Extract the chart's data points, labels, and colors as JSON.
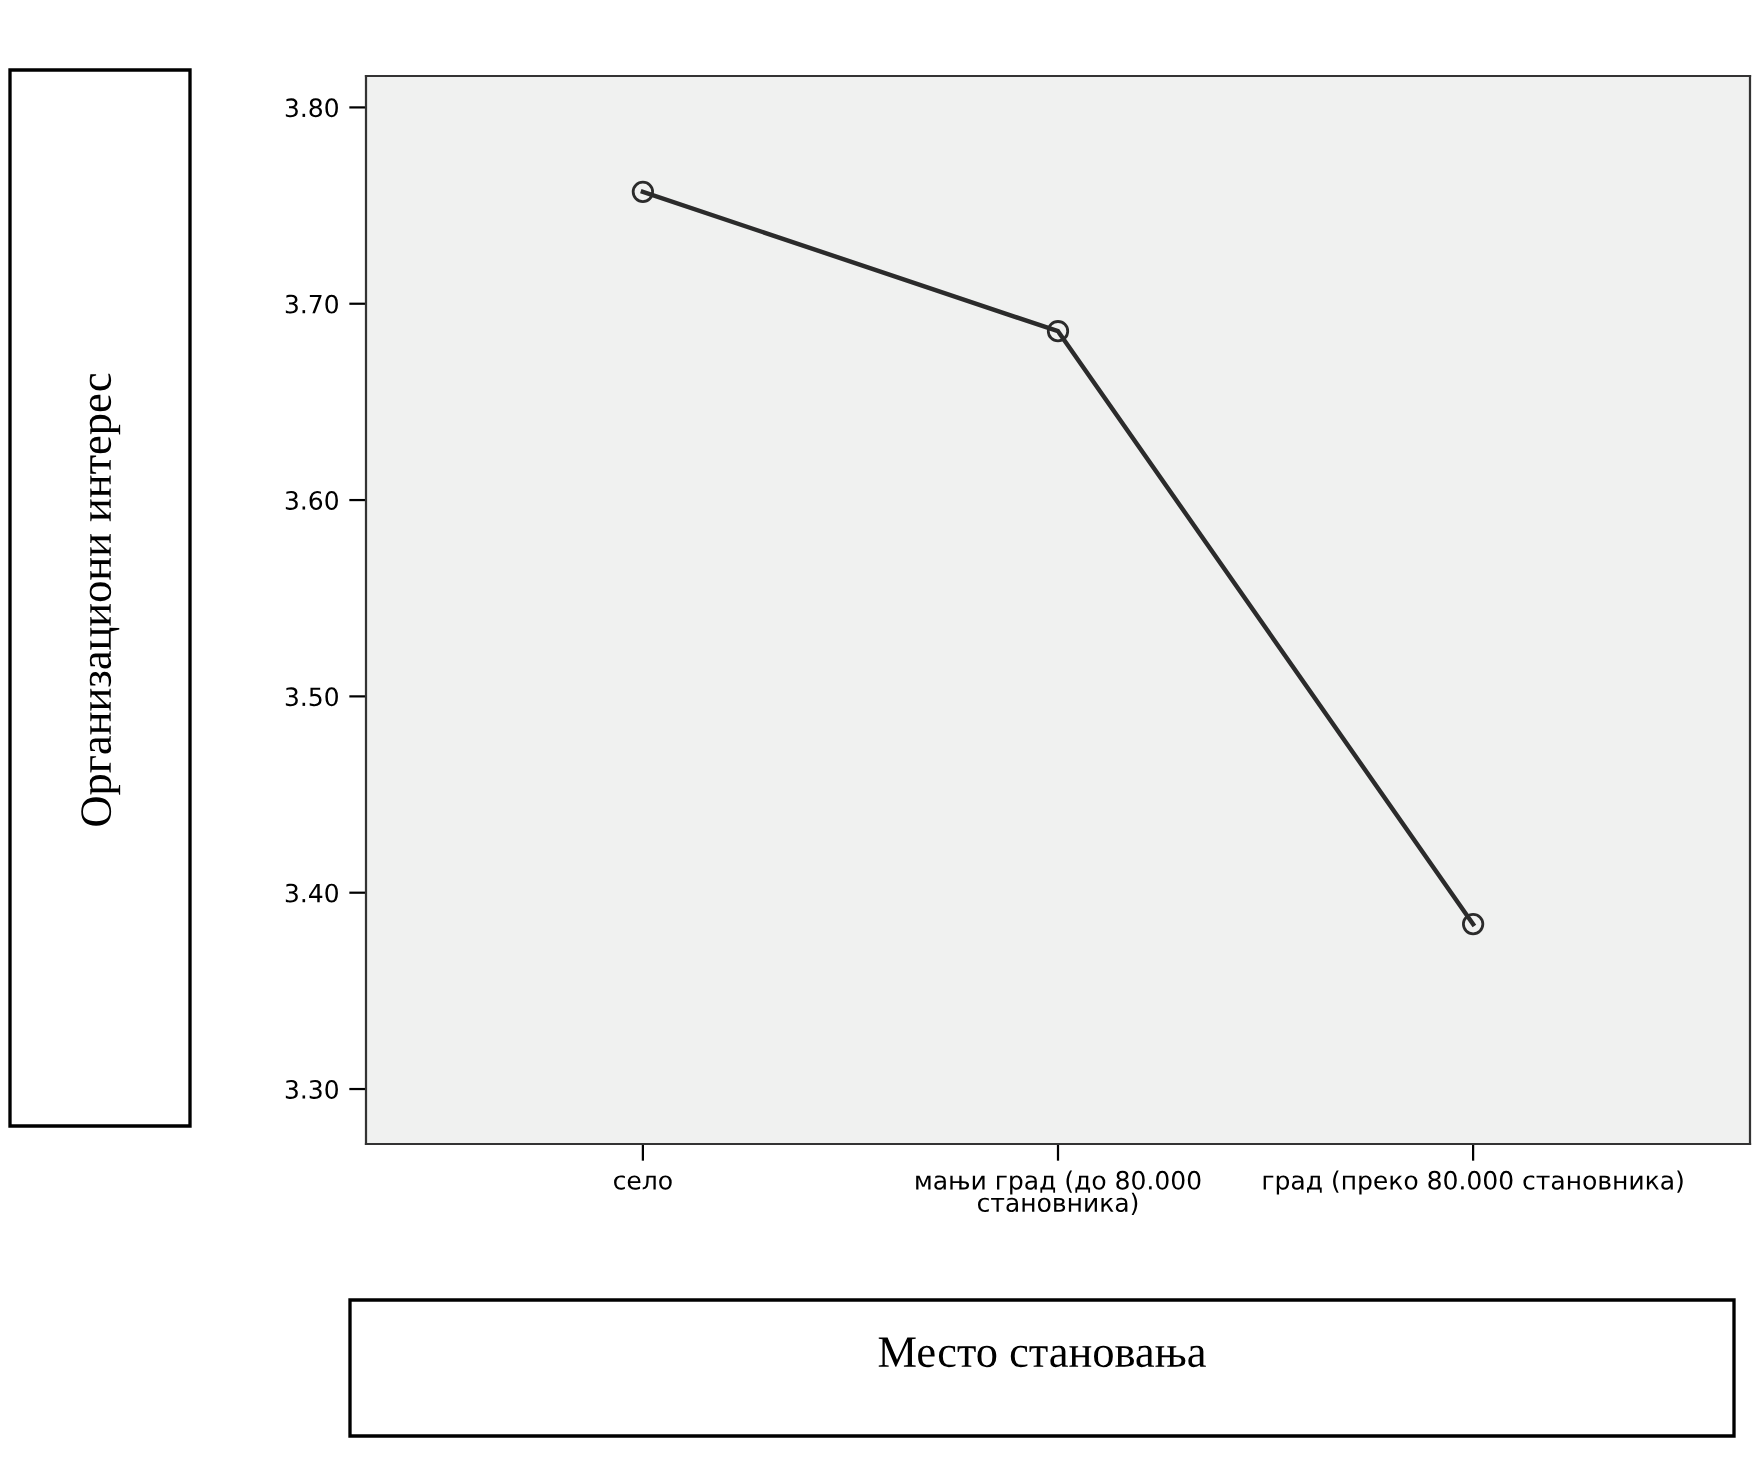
{
  "chart_data": {
    "type": "line",
    "xlabel": "Место становања",
    "ylabel": "Организациони интерес",
    "categories": [
      "село",
      "мањи град (до 80.000\nстановника)",
      "град (преко 80.000 становника)"
    ],
    "series": [
      {
        "color": "#2b2b2b",
        "values": [
          3.757,
          3.686,
          3.384
        ]
      }
    ],
    "ylim": [
      3.272,
      3.816
    ],
    "yticks": [
      {
        "value": 3.3,
        "label": "3.30"
      },
      {
        "value": 3.4,
        "label": "3.40"
      },
      {
        "value": 3.5,
        "label": "3.50"
      },
      {
        "value": 3.6,
        "label": "3.60"
      },
      {
        "value": 3.7,
        "label": "3.70"
      },
      {
        "value": 3.8,
        "label": "3.80"
      }
    ],
    "grid": false,
    "legend": false,
    "marker": "circle",
    "line_style": "solid"
  }
}
